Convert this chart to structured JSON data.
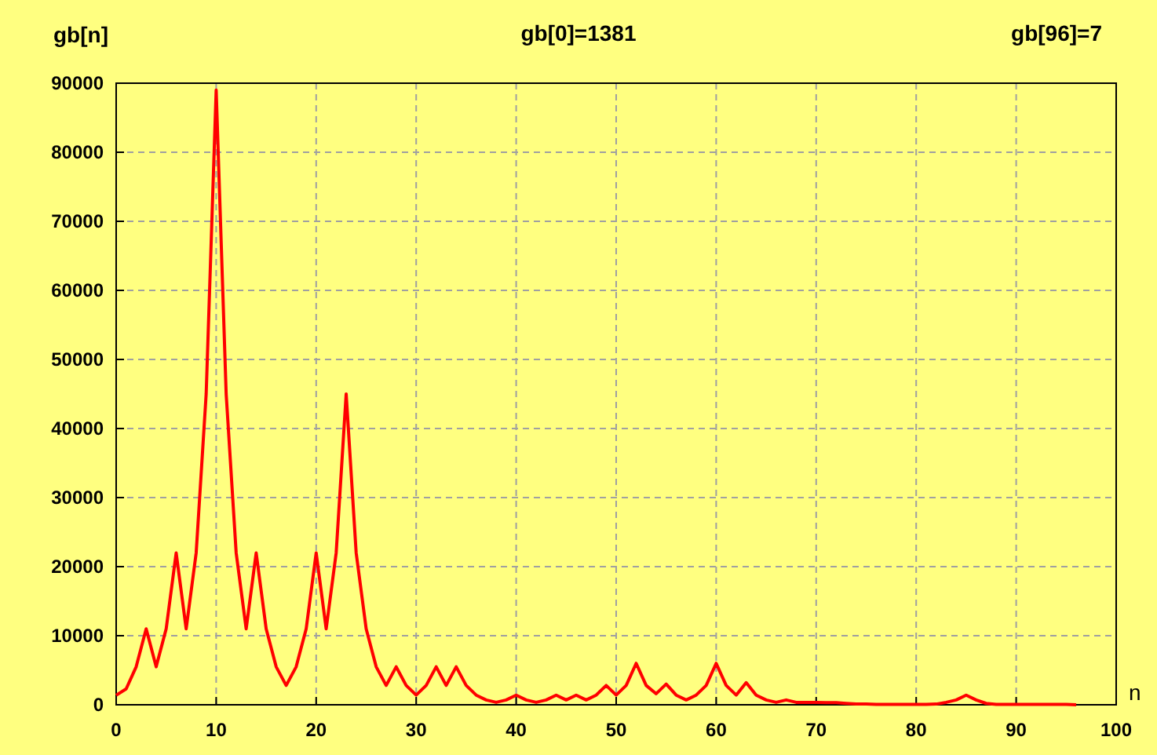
{
  "chart_data": {
    "type": "line",
    "title": "gb[0]=1381",
    "ylabel": "gb[n]",
    "xlabel": "n",
    "annotations": [
      "gb[96]=7"
    ],
    "x": [
      0,
      1,
      2,
      3,
      4,
      5,
      6,
      7,
      8,
      9,
      10,
      11,
      12,
      13,
      14,
      15,
      16,
      17,
      18,
      19,
      20,
      21,
      22,
      23,
      24,
      25,
      26,
      27,
      28,
      29,
      30,
      31,
      32,
      33,
      34,
      35,
      36,
      37,
      38,
      39,
      40,
      41,
      42,
      43,
      44,
      45,
      46,
      47,
      48,
      49,
      50,
      51,
      52,
      53,
      54,
      55,
      56,
      57,
      58,
      59,
      60,
      61,
      62,
      63,
      64,
      65,
      66,
      67,
      68,
      69,
      70,
      71,
      72,
      73,
      74,
      75,
      76,
      77,
      78,
      79,
      80,
      81,
      82,
      83,
      84,
      85,
      86,
      87,
      88,
      89,
      90,
      91,
      92,
      93,
      94,
      95,
      96
    ],
    "series": [
      {
        "color": "#ff0000",
        "values": [
          1381,
          2300,
          5500,
          11000,
          5500,
          11000,
          22000,
          11000,
          22000,
          45000,
          89000,
          45000,
          22000,
          11000,
          22000,
          11000,
          5500,
          2800,
          5500,
          11000,
          22000,
          11000,
          22000,
          45000,
          22000,
          11000,
          5500,
          2800,
          5500,
          2800,
          1400,
          2800,
          5500,
          2800,
          5500,
          2800,
          1400,
          700,
          350,
          700,
          1400,
          700,
          350,
          700,
          1400,
          700,
          1400,
          700,
          1400,
          2800,
          1400,
          2800,
          6000,
          2800,
          1600,
          3000,
          1400,
          700,
          1400,
          2800,
          6000,
          2800,
          1400,
          3200,
          1400,
          700,
          350,
          700,
          350,
          350,
          350,
          300,
          300,
          200,
          100,
          100,
          50,
          50,
          50,
          50,
          50,
          50,
          100,
          350,
          700,
          1400,
          700,
          200,
          50,
          50,
          50,
          50,
          50,
          50,
          50,
          50,
          7
        ]
      }
    ],
    "xlim": [
      0,
      100
    ],
    "ylim": [
      0,
      90000
    ],
    "xticks": [
      0,
      10,
      20,
      30,
      40,
      50,
      60,
      70,
      80,
      90,
      100
    ],
    "yticks": [
      0,
      10000,
      20000,
      30000,
      40000,
      50000,
      60000,
      70000,
      80000,
      90000
    ],
    "grid": true,
    "line_style": "solid",
    "marker": "none"
  }
}
